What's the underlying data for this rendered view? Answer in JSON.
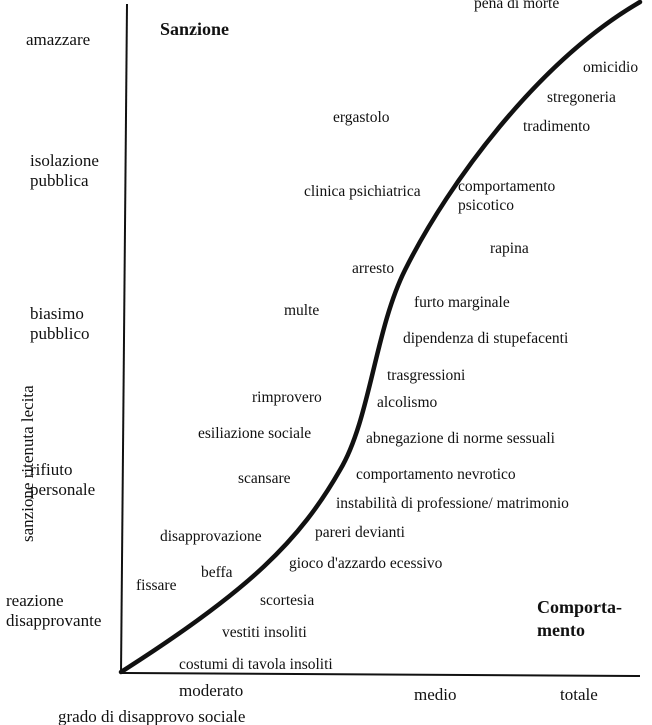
{
  "headings": {
    "sanction": "Sanzione",
    "behavior": "Comporta-\nmento"
  },
  "y_axis_title": "sanzione ritenuta lecita",
  "x_axis_title": "grado di disapprovo sociale",
  "y_levels": [
    "amazzare",
    "isolazione\npubblica",
    "biasimo\npubblico",
    "rifiuto\npersonale",
    "reazione\ndisapprovante"
  ],
  "x_levels": [
    "moderato",
    "medio",
    "totale"
  ],
  "sanctions": [
    "ergastolo",
    "clinica psichiatrica",
    "arresto",
    "multe",
    "rimprovero",
    "esiliazione sociale",
    "scansare",
    "disapprovazione",
    "beffa",
    "fissare"
  ],
  "behaviors": [
    "pena di morte",
    "omicidio",
    "stregoneria",
    "tradimento",
    "comportamento\npsicotico",
    "rapina",
    "furto marginale",
    "dipendenza di stupefacenti",
    "trasgressioni",
    "alcolismo",
    "abnegazione di norme sessuali",
    "comportamento nevrotico",
    "instabilità di professione/ matrimonio",
    "pareri devianti",
    "gioco d'azzardo ecessivo",
    "scortesia",
    "vestiti insoliti",
    "costumi di tavola insoliti"
  ],
  "colors": {
    "ink": "#111111",
    "background": "#ffffff"
  }
}
